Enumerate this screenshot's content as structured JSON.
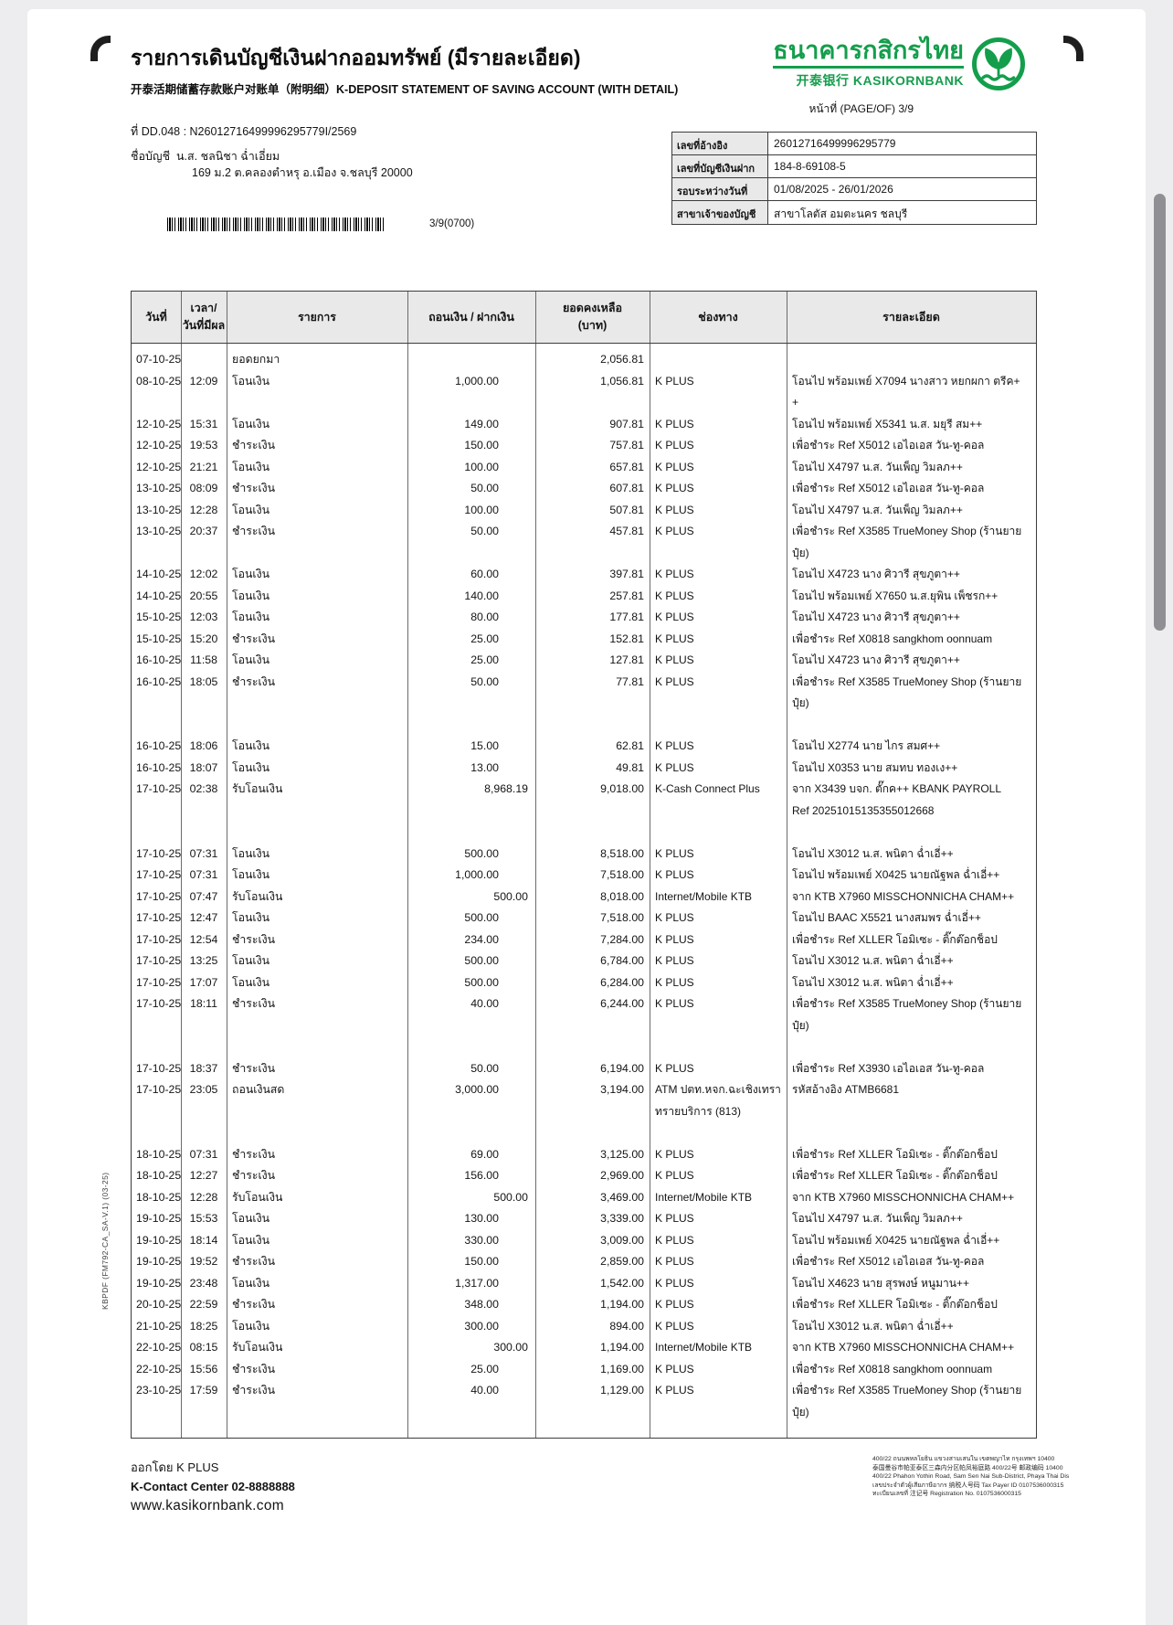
{
  "header": {
    "title_th": "รายการเดินบัญชีเงินฝากออมทรัพย์ (มีรายละเอียด)",
    "subtitle": "开泰活期储蓄存款账户对账单（附明细）K-DEPOSIT STATEMENT OF SAVING ACCOUNT (WITH DETAIL)",
    "bank_name_th": "ธนาคารกสิกรไทย",
    "bank_name_sub": "开泰银行 KASIKORNBANK",
    "brand_green": "#149E4C",
    "page_label": "หน้าที่ (PAGE/OF) 3/9"
  },
  "doc": {
    "doc_no": "ที่ DD.048 : N26012716499996295779I/2569",
    "account_label": "ชื่อบัญชี",
    "account_name": "น.ส. ชลนิชา ฉ่ำเอี่ยม",
    "account_address": "169 ม.2 ต.คลองตำหรุ อ.เมือง จ.ชลบุรี 20000",
    "barcode_caption": "3/9(0700)"
  },
  "info_table": {
    "rows": [
      {
        "label": "เลขที่อ้างอิง",
        "value": "26012716499996295779"
      },
      {
        "label": "เลขที่บัญชีเงินฝาก",
        "value": "184-8-69108-5"
      },
      {
        "label": "รอบระหว่างวันที่",
        "value": "01/08/2025 - 26/01/2026"
      },
      {
        "label": "สาขาเจ้าของบัญชี",
        "value": "สาขาโลตัส อมตะนคร ชลบุรี"
      }
    ]
  },
  "statement": {
    "columns": {
      "date": "วันที่",
      "time_l1": "เวลา/",
      "time_l2": "วันที่มีผล",
      "desc": "รายการ",
      "amount": "ถอนเงิน / ฝากเงิน",
      "balance_l1": "ยอดคงเหลือ",
      "balance_l2": "(บาท)",
      "channel": "ช่องทาง",
      "details": "รายละเอียด"
    },
    "rows": [
      {
        "date": "07-10-25",
        "time": "",
        "desc": "ยอดยกมา",
        "amount": "",
        "type": "w",
        "balance": "2,056.81",
        "channel": [],
        "details": []
      },
      {
        "date": "08-10-25",
        "time": "12:09",
        "desc": "โอนเงิน",
        "amount": "1,000.00",
        "type": "w",
        "balance": "1,056.81",
        "channel": [
          "K PLUS"
        ],
        "details": [
          "โอนไป พร้อมเพย์ X7094 นางสาว หยกผกา ตรีค+",
          "+"
        ]
      },
      {
        "date": "12-10-25",
        "time": "15:31",
        "desc": "โอนเงิน",
        "amount": "149.00",
        "type": "w",
        "balance": "907.81",
        "channel": [
          "K PLUS"
        ],
        "details": [
          "โอนไป พร้อมเพย์ X5341 น.ส. มยุรี สม++"
        ]
      },
      {
        "date": "12-10-25",
        "time": "19:53",
        "desc": "ชำระเงิน",
        "amount": "150.00",
        "type": "w",
        "balance": "757.81",
        "channel": [
          "K PLUS"
        ],
        "details": [
          "เพื่อชำระ Ref X5012 เอไอเอส วัน-ทู-คอล"
        ]
      },
      {
        "date": "12-10-25",
        "time": "21:21",
        "desc": "โอนเงิน",
        "amount": "100.00",
        "type": "w",
        "balance": "657.81",
        "channel": [
          "K PLUS"
        ],
        "details": [
          "โอนไป X4797 น.ส. วันเพ็ญ วิมลภ++"
        ]
      },
      {
        "date": "13-10-25",
        "time": "08:09",
        "desc": "ชำระเงิน",
        "amount": "50.00",
        "type": "w",
        "balance": "607.81",
        "channel": [
          "K PLUS"
        ],
        "details": [
          "เพื่อชำระ Ref X5012 เอไอเอส วัน-ทู-คอล"
        ]
      },
      {
        "date": "13-10-25",
        "time": "12:28",
        "desc": "โอนเงิน",
        "amount": "100.00",
        "type": "w",
        "balance": "507.81",
        "channel": [
          "K PLUS"
        ],
        "details": [
          "โอนไป X4797 น.ส. วันเพ็ญ วิมลภ++"
        ]
      },
      {
        "date": "13-10-25",
        "time": "20:37",
        "desc": "ชำระเงิน",
        "amount": "50.00",
        "type": "w",
        "balance": "457.81",
        "channel": [
          "K PLUS"
        ],
        "details": [
          "เพื่อชำระ Ref X3585 TrueMoney Shop (ร้านยาย",
          "ปุ๋ย)"
        ]
      },
      {
        "date": "14-10-25",
        "time": "12:02",
        "desc": "โอนเงิน",
        "amount": "60.00",
        "type": "w",
        "balance": "397.81",
        "channel": [
          "K PLUS"
        ],
        "details": [
          "โอนไป X4723 นาง ศิวารี สุขภูตา++"
        ]
      },
      {
        "date": "14-10-25",
        "time": "20:55",
        "desc": "โอนเงิน",
        "amount": "140.00",
        "type": "w",
        "balance": "257.81",
        "channel": [
          "K PLUS"
        ],
        "details": [
          "โอนไป พร้อมเพย์ X7650 น.ส.ยุพิน เพ็ชรก++"
        ]
      },
      {
        "date": "15-10-25",
        "time": "12:03",
        "desc": "โอนเงิน",
        "amount": "80.00",
        "type": "w",
        "balance": "177.81",
        "channel": [
          "K PLUS"
        ],
        "details": [
          "โอนไป X4723 นาง ศิวารี สุขภูตา++"
        ]
      },
      {
        "date": "15-10-25",
        "time": "15:20",
        "desc": "ชำระเงิน",
        "amount": "25.00",
        "type": "w",
        "balance": "152.81",
        "channel": [
          "K PLUS"
        ],
        "details": [
          "เพื่อชำระ Ref X0818 sangkhom oonnuam"
        ]
      },
      {
        "date": "16-10-25",
        "time": "11:58",
        "desc": "โอนเงิน",
        "amount": "25.00",
        "type": "w",
        "balance": "127.81",
        "channel": [
          "K PLUS"
        ],
        "details": [
          "โอนไป X4723 นาง ศิวารี สุขภูตา++"
        ]
      },
      {
        "date": "16-10-25",
        "time": "18:05",
        "desc": "ชำระเงิน",
        "amount": "50.00",
        "type": "w",
        "balance": "77.81",
        "channel": [
          "K PLUS"
        ],
        "details": [
          "เพื่อชำระ Ref X3585 TrueMoney Shop (ร้านยาย",
          "ปุ๋ย)"
        ],
        "pad": true
      },
      {
        "date": "16-10-25",
        "time": "18:06",
        "desc": "โอนเงิน",
        "amount": "15.00",
        "type": "w",
        "balance": "62.81",
        "channel": [
          "K PLUS"
        ],
        "details": [
          "โอนไป X2774 นาย ไกร สมศ++"
        ]
      },
      {
        "date": "16-10-25",
        "time": "18:07",
        "desc": "โอนเงิน",
        "amount": "13.00",
        "type": "w",
        "balance": "49.81",
        "channel": [
          "K PLUS"
        ],
        "details": [
          "โอนไป X0353 นาย สมทบ ทองเง++"
        ]
      },
      {
        "date": "17-10-25",
        "time": "02:38",
        "desc": "รับโอนเงิน",
        "amount": "8,968.19",
        "type": "d",
        "balance": "9,018.00",
        "channel": [
          "K-Cash Connect Plus"
        ],
        "details": [
          "จาก X3439 บจก. ตั๊กค++ KBANK PAYROLL",
          "Ref 20251015135355012668"
        ],
        "pad": true
      },
      {
        "date": "17-10-25",
        "time": "07:31",
        "desc": "โอนเงิน",
        "amount": "500.00",
        "type": "w",
        "balance": "8,518.00",
        "channel": [
          "K PLUS"
        ],
        "details": [
          "โอนไป X3012 น.ส. พนิตา ฉ่ำเอี่++"
        ]
      },
      {
        "date": "17-10-25",
        "time": "07:31",
        "desc": "โอนเงิน",
        "amount": "1,000.00",
        "type": "w",
        "balance": "7,518.00",
        "channel": [
          "K PLUS"
        ],
        "details": [
          "โอนไป พร้อมเพย์ X0425 นายณัฐพล ฉ่ำเอี่++"
        ]
      },
      {
        "date": "17-10-25",
        "time": "07:47",
        "desc": "รับโอนเงิน",
        "amount": "500.00",
        "type": "d",
        "balance": "8,018.00",
        "channel": [
          "Internet/Mobile KTB"
        ],
        "details": [
          "จาก KTB X7960 MISSCHONNICHA CHAM++"
        ]
      },
      {
        "date": "17-10-25",
        "time": "12:47",
        "desc": "โอนเงิน",
        "amount": "500.00",
        "type": "w",
        "balance": "7,518.00",
        "channel": [
          "K PLUS"
        ],
        "details": [
          "โอนไป BAAC X5521 นางสมพร  ฉ่ำเอี่++"
        ]
      },
      {
        "date": "17-10-25",
        "time": "12:54",
        "desc": "ชำระเงิน",
        "amount": "234.00",
        "type": "w",
        "balance": "7,284.00",
        "channel": [
          "K PLUS"
        ],
        "details": [
          "เพื่อชำระ Ref XLLER โอมิเซะ - ติ๊กต๊อกช็อป"
        ]
      },
      {
        "date": "17-10-25",
        "time": "13:25",
        "desc": "โอนเงิน",
        "amount": "500.00",
        "type": "w",
        "balance": "6,784.00",
        "channel": [
          "K PLUS"
        ],
        "details": [
          "โอนไป X3012 น.ส. พนิตา ฉ่ำเอี่++"
        ]
      },
      {
        "date": "17-10-25",
        "time": "17:07",
        "desc": "โอนเงิน",
        "amount": "500.00",
        "type": "w",
        "balance": "6,284.00",
        "channel": [
          "K PLUS"
        ],
        "details": [
          "โอนไป X3012 น.ส. พนิตา ฉ่ำเอี่++"
        ]
      },
      {
        "date": "17-10-25",
        "time": "18:11",
        "desc": "ชำระเงิน",
        "amount": "40.00",
        "type": "w",
        "balance": "6,244.00",
        "channel": [
          "K PLUS"
        ],
        "details": [
          "เพื่อชำระ Ref X3585 TrueMoney Shop (ร้านยาย",
          "ปุ๋ย)"
        ],
        "pad": true
      },
      {
        "date": "17-10-25",
        "time": "18:37",
        "desc": "ชำระเงิน",
        "amount": "50.00",
        "type": "w",
        "balance": "6,194.00",
        "channel": [
          "K PLUS"
        ],
        "details": [
          "เพื่อชำระ Ref X3930 เอไอเอส วัน-ทู-คอล"
        ]
      },
      {
        "date": "17-10-25",
        "time": "23:05",
        "desc": "ถอนเงินสด",
        "amount": "3,000.00",
        "type": "w",
        "balance": "3,194.00",
        "channel": [
          "ATM ปตท.หจก.ฉะเชิงเทรา",
          "ทรายบริการ (813)"
        ],
        "details": [
          "รหัสอ้างอิง ATMB6681"
        ],
        "pad": true
      },
      {
        "date": "18-10-25",
        "time": "07:31",
        "desc": "ชำระเงิน",
        "amount": "69.00",
        "type": "w",
        "balance": "3,125.00",
        "channel": [
          "K PLUS"
        ],
        "details": [
          "เพื่อชำระ Ref XLLER โอมิเซะ - ติ๊กต๊อกช็อป"
        ]
      },
      {
        "date": "18-10-25",
        "time": "12:27",
        "desc": "ชำระเงิน",
        "amount": "156.00",
        "type": "w",
        "balance": "2,969.00",
        "channel": [
          "K PLUS"
        ],
        "details": [
          "เพื่อชำระ Ref XLLER โอมิเซะ - ติ๊กต๊อกช็อป"
        ]
      },
      {
        "date": "18-10-25",
        "time": "12:28",
        "desc": "รับโอนเงิน",
        "amount": "500.00",
        "type": "d",
        "balance": "3,469.00",
        "channel": [
          "Internet/Mobile KTB"
        ],
        "details": [
          "จาก KTB X7960 MISSCHONNICHA CHAM++"
        ]
      },
      {
        "date": "19-10-25",
        "time": "15:53",
        "desc": "โอนเงิน",
        "amount": "130.00",
        "type": "w",
        "balance": "3,339.00",
        "channel": [
          "K PLUS"
        ],
        "details": [
          "โอนไป X4797 น.ส. วันเพ็ญ วิมลภ++"
        ]
      },
      {
        "date": "19-10-25",
        "time": "18:14",
        "desc": "โอนเงิน",
        "amount": "330.00",
        "type": "w",
        "balance": "3,009.00",
        "channel": [
          "K PLUS"
        ],
        "details": [
          "โอนไป พร้อมเพย์ X0425 นายณัฐพล ฉ่ำเอี่++"
        ]
      },
      {
        "date": "19-10-25",
        "time": "19:52",
        "desc": "ชำระเงิน",
        "amount": "150.00",
        "type": "w",
        "balance": "2,859.00",
        "channel": [
          "K PLUS"
        ],
        "details": [
          "เพื่อชำระ Ref X5012 เอไอเอส วัน-ทู-คอล"
        ]
      },
      {
        "date": "19-10-25",
        "time": "23:48",
        "desc": "โอนเงิน",
        "amount": "1,317.00",
        "type": "w",
        "balance": "1,542.00",
        "channel": [
          "K PLUS"
        ],
        "details": [
          "โอนไป X4623 นาย สุรพงษ์ หนูมาน++"
        ]
      },
      {
        "date": "20-10-25",
        "time": "22:59",
        "desc": "ชำระเงิน",
        "amount": "348.00",
        "type": "w",
        "balance": "1,194.00",
        "channel": [
          "K PLUS"
        ],
        "details": [
          "เพื่อชำระ Ref XLLER โอมิเซะ - ติ๊กต๊อกช็อป"
        ]
      },
      {
        "date": "21-10-25",
        "time": "18:25",
        "desc": "โอนเงิน",
        "amount": "300.00",
        "type": "w",
        "balance": "894.00",
        "channel": [
          "K PLUS"
        ],
        "details": [
          "โอนไป X3012 น.ส. พนิตา ฉ่ำเอี่++"
        ]
      },
      {
        "date": "22-10-25",
        "time": "08:15",
        "desc": "รับโอนเงิน",
        "amount": "300.00",
        "type": "d",
        "balance": "1,194.00",
        "channel": [
          "Internet/Mobile KTB"
        ],
        "details": [
          "จาก KTB X7960 MISSCHONNICHA CHAM++"
        ]
      },
      {
        "date": "22-10-25",
        "time": "15:56",
        "desc": "ชำระเงิน",
        "amount": "25.00",
        "type": "w",
        "balance": "1,169.00",
        "channel": [
          "K PLUS"
        ],
        "details": [
          "เพื่อชำระ Ref X0818 sangkhom oonnuam"
        ]
      },
      {
        "date": "23-10-25",
        "time": "17:59",
        "desc": "ชำระเงิน",
        "amount": "40.00",
        "type": "w",
        "balance": "1,129.00",
        "channel": [
          "K PLUS"
        ],
        "details": [
          "เพื่อชำระ Ref X3585 TrueMoney Shop (ร้านยาย",
          "ปุ๋ย)"
        ]
      }
    ]
  },
  "side_note": "KBPDF (FM792-CA_SA-V.1) (03-25)",
  "footer": {
    "issued_by": "ออกโดย K PLUS",
    "contact": "K-Contact Center 02-8888888",
    "website": "www.kasikornbank.com",
    "address_lines": [
      "400/22 ถนนพหลโยธิน แขวงสามเสนใน เขตพญาไท กรุงเทพฯ 10400",
      "泰国曼谷市帕亚泰区三森内分区帕凤裕庭路 400/22号 邮政编码 10400",
      "400/22 Phahon Yothin Road, Sam Sen Nai Sub-District, Phaya Thai District, Bangkok 10400, Thailand,",
      "เลขประจำตัวผู้เสียภาษีอากร 纳税人号码 Tax Payer ID 0107536000315",
      "ทะเบียนเลขที่ 注记号 Registration No. 0107536000315"
    ]
  }
}
